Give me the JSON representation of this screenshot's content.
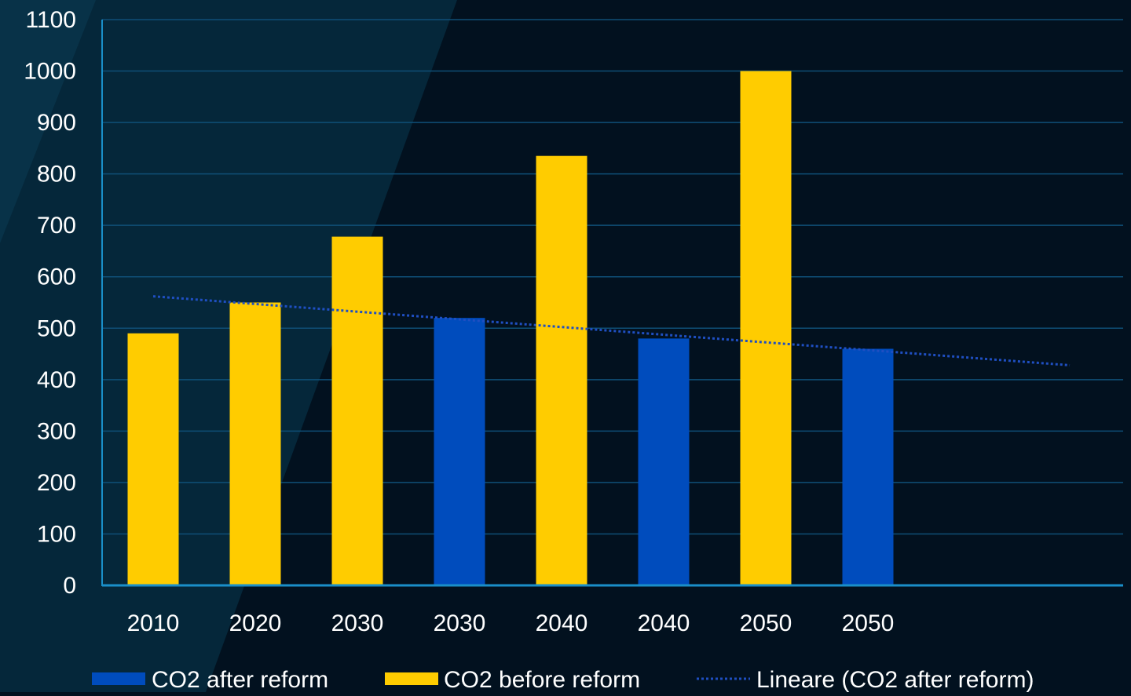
{
  "colors": {
    "background": "#02111f",
    "panel": "#062a3d",
    "grid": "#0f4f77",
    "axis": "#1a8fc9",
    "text": "#ffffff",
    "after": "#004cbd",
    "before": "#ffcc00",
    "trend": "#1f4fc2"
  },
  "chart_data": {
    "type": "bar",
    "categories": [
      "2010",
      "2020",
      "2030",
      "2030",
      "2040",
      "2040",
      "2050",
      "2050"
    ],
    "series": [
      {
        "name": "CO2 after reform",
        "color": "#004cbd",
        "values": [
          null,
          null,
          null,
          520,
          null,
          480,
          null,
          460
        ]
      },
      {
        "name": "CO2 before reform",
        "color": "#ffcc00",
        "values": [
          490,
          550,
          678,
          null,
          835,
          null,
          1000,
          null
        ]
      }
    ],
    "trendline": {
      "name": "Lineare (CO2 after reform)",
      "start": 562,
      "end": 428,
      "style": "dotted"
    },
    "yticks": [
      "0",
      "100",
      "200",
      "300",
      "400",
      "500",
      "600",
      "700",
      "800",
      "900",
      "1000",
      "1100"
    ],
    "ylim": [
      0,
      1100
    ],
    "grid": true,
    "legend_position": "bottom"
  }
}
